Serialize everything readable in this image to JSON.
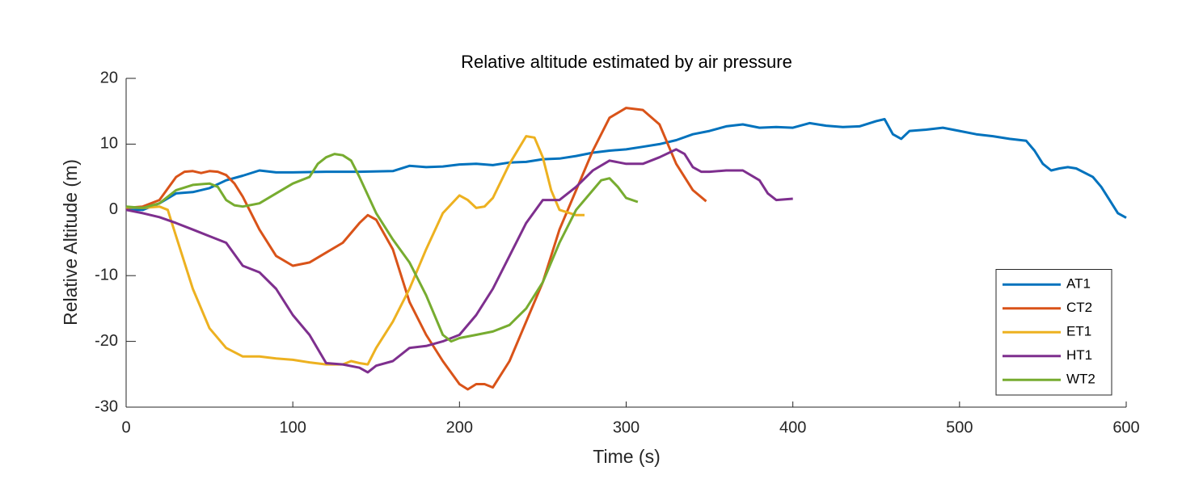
{
  "chart_data": {
    "type": "line",
    "title": "Relative altitude estimated by air pressure",
    "x_label": "Time (s)",
    "y_label": "Relative Altitude (m)",
    "xlim": [
      0,
      600
    ],
    "ylim": [
      -30,
      20
    ],
    "xticks": [
      0,
      100,
      200,
      300,
      400,
      500,
      600
    ],
    "yticks": [
      -30,
      -20,
      -10,
      0,
      10,
      20
    ],
    "legend": "lower right",
    "series": [
      {
        "name": "AT1",
        "color": "#0072bd",
        "x": [
          0,
          10,
          20,
          30,
          40,
          50,
          60,
          70,
          80,
          90,
          100,
          120,
          140,
          160,
          170,
          180,
          190,
          200,
          210,
          220,
          230,
          240,
          250,
          260,
          270,
          280,
          290,
          300,
          310,
          320,
          330,
          340,
          350,
          360,
          370,
          380,
          390,
          400,
          410,
          420,
          430,
          440,
          450,
          455,
          460,
          465,
          470,
          480,
          490,
          500,
          510,
          520,
          530,
          540,
          545,
          550,
          555,
          560,
          565,
          570,
          580,
          585,
          590,
          595,
          600
        ],
        "values": [
          0,
          0,
          1,
          2.5,
          2.7,
          3.3,
          4.5,
          5.2,
          6,
          5.7,
          5.7,
          5.8,
          5.8,
          5.9,
          6.7,
          6.5,
          6.6,
          6.9,
          7,
          6.8,
          7.2,
          7.3,
          7.7,
          7.8,
          8.2,
          8.7,
          9,
          9.2,
          9.6,
          10,
          10.6,
          11.5,
          12,
          12.7,
          13,
          12.5,
          12.6,
          12.5,
          13.2,
          12.8,
          12.6,
          12.7,
          13.5,
          13.8,
          11.5,
          10.8,
          12,
          12.2,
          12.5,
          12,
          11.5,
          11.2,
          10.8,
          10.5,
          9,
          7,
          6,
          6.3,
          6.5,
          6.3,
          5,
          3.5,
          1.5,
          -0.5,
          -1.2
        ]
      },
      {
        "name": "CT2",
        "color": "#d95319",
        "x": [
          0,
          10,
          20,
          30,
          35,
          40,
          45,
          50,
          55,
          60,
          65,
          70,
          80,
          90,
          100,
          110,
          120,
          130,
          140,
          145,
          150,
          160,
          170,
          180,
          190,
          200,
          205,
          210,
          215,
          220,
          230,
          240,
          250,
          260,
          270,
          280,
          290,
          300,
          310,
          320,
          330,
          340,
          348
        ],
        "values": [
          0.3,
          0.5,
          1.5,
          5,
          5.8,
          5.9,
          5.6,
          5.9,
          5.8,
          5.3,
          4,
          2,
          -3,
          -7,
          -8.5,
          -8,
          -6.5,
          -5,
          -2,
          -0.8,
          -1.5,
          -6,
          -14,
          -19,
          -23,
          -26.5,
          -27.3,
          -26.5,
          -26.5,
          -27,
          -23,
          -17,
          -11,
          -3,
          3,
          9,
          14,
          15.5,
          15.2,
          13,
          7,
          3,
          1.3
        ]
      },
      {
        "name": "ET1",
        "color": "#edb120",
        "x": [
          0,
          10,
          20,
          25,
          30,
          40,
          50,
          60,
          70,
          80,
          90,
          100,
          110,
          120,
          130,
          135,
          140,
          145,
          150,
          160,
          170,
          180,
          190,
          200,
          205,
          210,
          215,
          220,
          230,
          240,
          245,
          250,
          255,
          260,
          270,
          275
        ],
        "values": [
          0.4,
          0.3,
          0.5,
          0,
          -4,
          -12,
          -18,
          -21,
          -22.3,
          -22.3,
          -22.6,
          -22.8,
          -23.2,
          -23.5,
          -23.5,
          -23,
          -23.3,
          -23.5,
          -21,
          -17,
          -12,
          -6,
          -0.5,
          2.2,
          1.5,
          0.3,
          0.5,
          1.8,
          7,
          11.2,
          11,
          8,
          3,
          0,
          -0.8,
          -0.8
        ]
      },
      {
        "name": "HT1",
        "color": "#7e2f8e",
        "x": [
          0,
          10,
          20,
          30,
          40,
          50,
          60,
          70,
          80,
          90,
          100,
          110,
          120,
          130,
          140,
          145,
          150,
          160,
          170,
          180,
          190,
          200,
          210,
          220,
          230,
          240,
          250,
          260,
          270,
          280,
          290,
          300,
          310,
          320,
          330,
          335,
          340,
          345,
          350,
          360,
          370,
          380,
          385,
          390,
          400
        ],
        "values": [
          0,
          -0.5,
          -1.1,
          -2,
          -3,
          -4,
          -5,
          -8.5,
          -9.5,
          -12,
          -16,
          -19,
          -23.3,
          -23.5,
          -24,
          -24.7,
          -23.7,
          -23,
          -21,
          -20.7,
          -20,
          -19,
          -16,
          -12,
          -7,
          -2,
          1.5,
          1.5,
          3.5,
          6,
          7.5,
          7,
          7,
          8,
          9.2,
          8.5,
          6.5,
          5.8,
          5.8,
          6,
          6,
          4.5,
          2.5,
          1.5,
          1.7
        ]
      },
      {
        "name": "WT2",
        "color": "#77ac30",
        "x": [
          0,
          10,
          20,
          30,
          40,
          50,
          55,
          60,
          65,
          70,
          80,
          90,
          100,
          110,
          115,
          120,
          125,
          130,
          135,
          140,
          150,
          160,
          170,
          180,
          190,
          195,
          200,
          210,
          220,
          230,
          240,
          250,
          260,
          270,
          280,
          285,
          290,
          295,
          300,
          307
        ],
        "values": [
          0.5,
          0.3,
          1,
          3,
          3.8,
          4,
          3.5,
          1.5,
          0.7,
          0.5,
          1,
          2.5,
          4,
          5,
          7,
          8,
          8.5,
          8.3,
          7.5,
          5,
          -0.5,
          -4.5,
          -8,
          -13,
          -19,
          -20,
          -19.5,
          -19,
          -18.5,
          -17.5,
          -15,
          -11,
          -5,
          0,
          3,
          4.5,
          4.8,
          3.5,
          1.8,
          1.2
        ]
      }
    ]
  }
}
